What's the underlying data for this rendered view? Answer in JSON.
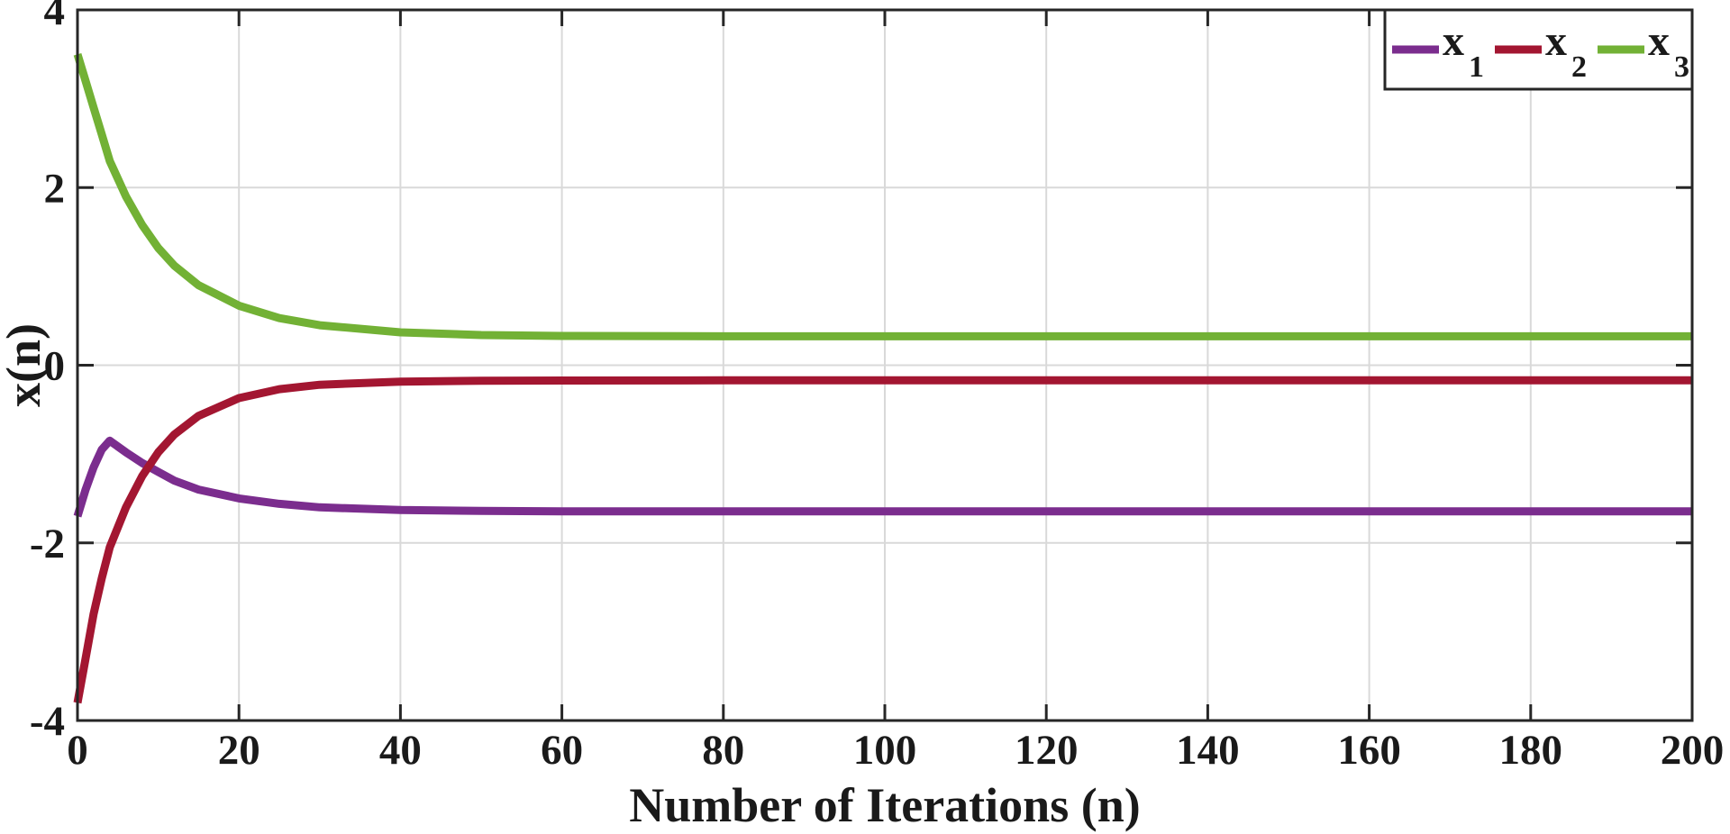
{
  "chart_data": {
    "type": "line",
    "xlabel": "Number of Iterations (n)",
    "ylabel": "x(n)",
    "xlim": [
      0,
      200
    ],
    "ylim": [
      -4,
      4
    ],
    "xticks": [
      0,
      20,
      40,
      60,
      80,
      100,
      120,
      140,
      160,
      180,
      200
    ],
    "yticks": [
      -4,
      -2,
      0,
      2,
      4
    ],
    "grid": true,
    "legend": {
      "position": "top-right",
      "orientation": "horizontal"
    },
    "series": [
      {
        "name": "x",
        "subscript": "1",
        "color": "#7b2d8e",
        "x": [
          0,
          1,
          2,
          3,
          4,
          6,
          8,
          10,
          12,
          15,
          20,
          25,
          30,
          40,
          50,
          60,
          80,
          100,
          150,
          200
        ],
        "y": [
          -1.7,
          -1.4,
          -1.15,
          -0.95,
          -0.85,
          -0.98,
          -1.1,
          -1.2,
          -1.3,
          -1.4,
          -1.5,
          -1.56,
          -1.6,
          -1.63,
          -1.64,
          -1.645,
          -1.645,
          -1.645,
          -1.645,
          -1.645
        ]
      },
      {
        "name": "x",
        "subscript": "2",
        "color": "#a31631",
        "x": [
          0,
          1,
          2,
          3,
          4,
          6,
          8,
          10,
          12,
          15,
          20,
          25,
          30,
          40,
          50,
          60,
          80,
          100,
          150,
          200
        ],
        "y": [
          -3.8,
          -3.3,
          -2.8,
          -2.4,
          -2.05,
          -1.6,
          -1.25,
          -0.98,
          -0.78,
          -0.57,
          -0.37,
          -0.27,
          -0.22,
          -0.185,
          -0.175,
          -0.172,
          -0.17,
          -0.17,
          -0.17,
          -0.17
        ]
      },
      {
        "name": "x",
        "subscript": "3",
        "color": "#72b135",
        "x": [
          0,
          1,
          2,
          3,
          4,
          6,
          8,
          10,
          12,
          15,
          20,
          25,
          30,
          40,
          50,
          60,
          80,
          100,
          150,
          200
        ],
        "y": [
          3.5,
          3.2,
          2.9,
          2.6,
          2.3,
          1.9,
          1.58,
          1.32,
          1.12,
          0.9,
          0.67,
          0.53,
          0.45,
          0.37,
          0.34,
          0.33,
          0.325,
          0.325,
          0.325,
          0.325
        ]
      }
    ]
  }
}
